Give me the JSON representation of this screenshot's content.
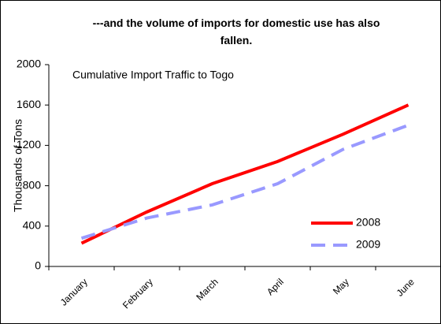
{
  "chart_data": {
    "type": "line",
    "title": "---and the volume of imports for domestic use has also fallen.",
    "subtitle": "Cumulative Import Traffic to Togo",
    "y_label": "Thousands of Tons",
    "categories": [
      "January",
      "February",
      "March",
      "April",
      "May",
      "June"
    ],
    "series": [
      {
        "name": "2008",
        "color": "#ff0000",
        "dashed": false,
        "values": [
          230,
          540,
          820,
          1040,
          1310,
          1600
        ]
      },
      {
        "name": "2009",
        "color": "#9999ff",
        "dashed": true,
        "values": [
          280,
          480,
          610,
          820,
          1160,
          1400
        ]
      }
    ],
    "ylim": [
      0,
      2000
    ],
    "yticks": [
      0,
      400,
      800,
      1200,
      1600,
      2000
    ],
    "grid": false,
    "legend": "lower right"
  }
}
